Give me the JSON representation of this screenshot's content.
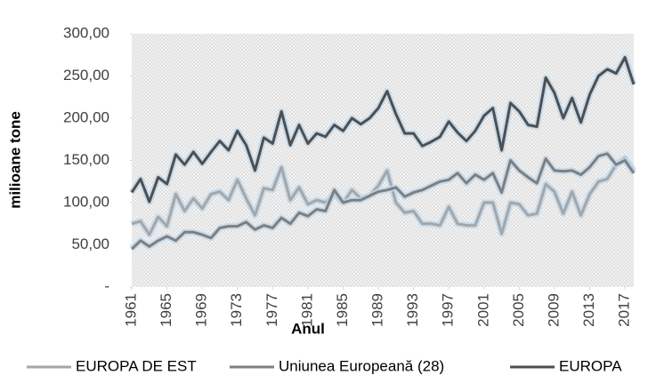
{
  "chart_data": {
    "type": "line",
    "y_label": "milioane tone",
    "x_label": "Anul",
    "x": [
      1961,
      1962,
      1963,
      1964,
      1965,
      1966,
      1967,
      1968,
      1969,
      1970,
      1971,
      1972,
      1973,
      1974,
      1975,
      1976,
      1977,
      1978,
      1979,
      1980,
      1981,
      1982,
      1983,
      1984,
      1985,
      1986,
      1987,
      1988,
      1989,
      1990,
      1991,
      1992,
      1993,
      1994,
      1995,
      1996,
      1997,
      1998,
      1999,
      2000,
      2001,
      2002,
      2003,
      2004,
      2005,
      2006,
      2007,
      2008,
      2009,
      2010,
      2011,
      2012,
      2013,
      2014,
      2015,
      2016,
      2017,
      2018
    ],
    "xlim": [
      1961,
      2018
    ],
    "xticks": [
      1961,
      1965,
      1969,
      1973,
      1977,
      1981,
      1985,
      1989,
      1993,
      1997,
      2001,
      2005,
      2009,
      2013,
      2017
    ],
    "ylim": [
      0,
      300
    ],
    "yticks": [
      {
        "value": 0,
        "label": "-"
      },
      {
        "value": 50,
        "label": "50,00"
      },
      {
        "value": 100,
        "label": "100,00"
      },
      {
        "value": 150,
        "label": "150,00"
      },
      {
        "value": 200,
        "label": "200,00"
      },
      {
        "value": 250,
        "label": "250,00"
      },
      {
        "value": 300,
        "label": "300,00"
      }
    ],
    "legend": "bottom",
    "series": [
      {
        "name": "EUROPA DE EST",
        "color": "#a6a6a6",
        "values": [
          75,
          78,
          62,
          83,
          72,
          110,
          90,
          105,
          93,
          110,
          113,
          103,
          127,
          105,
          85,
          117,
          115,
          142,
          103,
          118,
          98,
          103,
          100,
          110,
          100,
          115,
          105,
          108,
          120,
          138,
          100,
          88,
          90,
          75,
          75,
          73,
          95,
          75,
          73,
          73,
          100,
          100,
          63,
          100,
          98,
          85,
          87,
          122,
          113,
          87,
          113,
          85,
          110,
          125,
          128,
          145,
          153,
          138
        ]
      },
      {
        "name": "Uniunea Europeană (28)",
        "color": "#7f7f7f",
        "values": [
          45,
          55,
          48,
          55,
          60,
          55,
          65,
          65,
          62,
          58,
          70,
          72,
          72,
          77,
          68,
          73,
          70,
          82,
          75,
          88,
          84,
          92,
          90,
          115,
          100,
          103,
          103,
          108,
          113,
          115,
          118,
          107,
          112,
          115,
          120,
          125,
          127,
          135,
          123,
          133,
          127,
          135,
          112,
          150,
          138,
          130,
          123,
          152,
          138,
          137,
          138,
          133,
          142,
          155,
          158,
          145,
          150,
          135
        ]
      },
      {
        "name": "EUROPA",
        "color": "#4f4f4f",
        "values": [
          112,
          128,
          101,
          130,
          122,
          157,
          145,
          160,
          146,
          160,
          173,
          162,
          185,
          168,
          138,
          177,
          170,
          208,
          168,
          192,
          170,
          182,
          178,
          192,
          185,
          200,
          193,
          200,
          212,
          232,
          205,
          182,
          182,
          167,
          172,
          178,
          196,
          183,
          173,
          185,
          203,
          212,
          162,
          218,
          208,
          192,
          190,
          248,
          230,
          200,
          224,
          195,
          228,
          250,
          258,
          253,
          272,
          240
        ]
      }
    ]
  }
}
